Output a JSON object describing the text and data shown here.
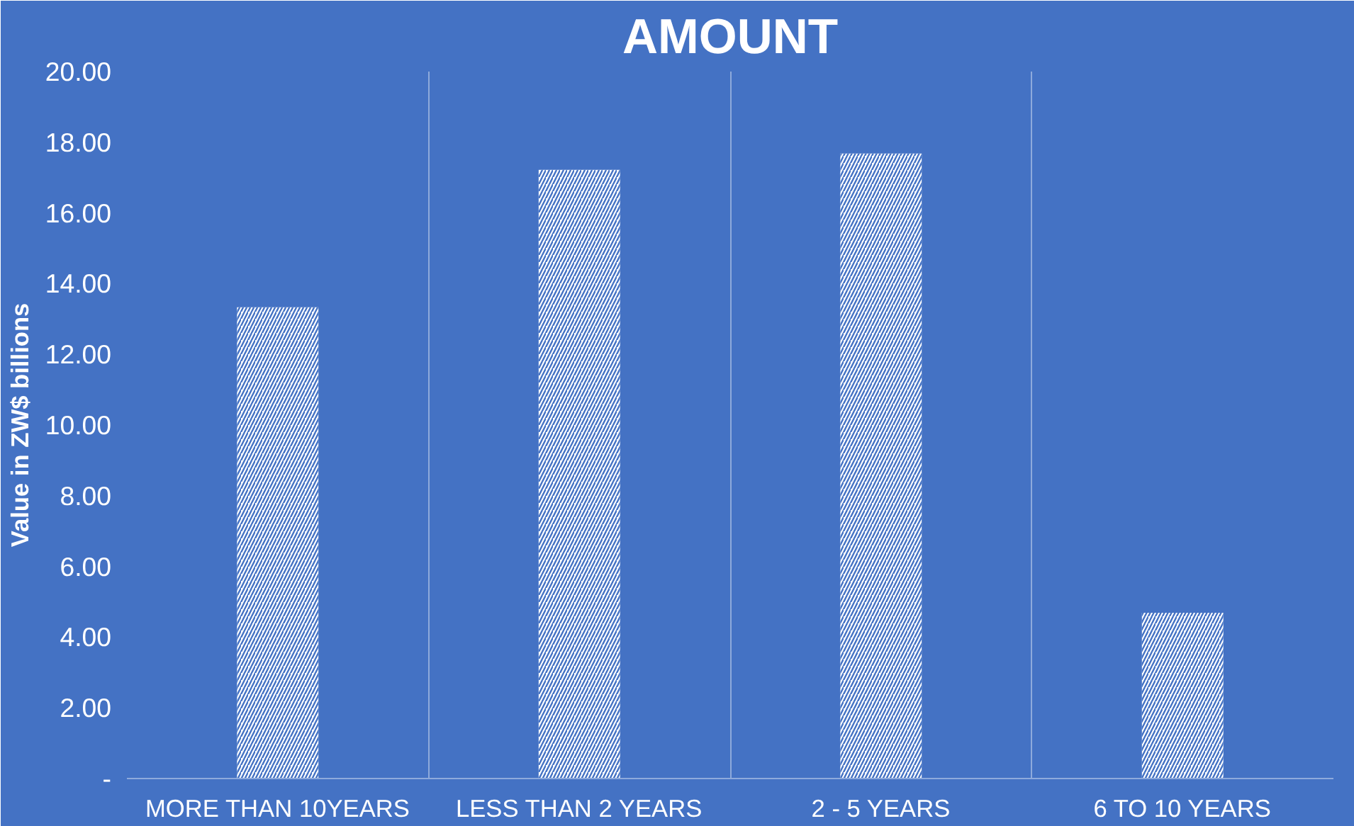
{
  "chart_data": {
    "type": "bar",
    "title": "AMOUNT",
    "ylabel": "Value in ZW$ billions",
    "categories": [
      "MORE THAN 10YEARS",
      "LESS THAN 2 YEARS",
      "2 - 5 YEARS",
      "6 TO 10 YEARS"
    ],
    "values": [
      13.33,
      17.22,
      17.68,
      4.69
    ],
    "color": "#ffffff",
    "ylim": [
      0,
      20
    ],
    "yticks": [
      {
        "value": 0,
        "label": "-"
      },
      {
        "value": 2,
        "label": "2.00"
      },
      {
        "value": 4,
        "label": "4.00"
      },
      {
        "value": 6,
        "label": "6.00"
      },
      {
        "value": 8,
        "label": "8.00"
      },
      {
        "value": 10,
        "label": "10.00"
      },
      {
        "value": 12,
        "label": "12.00"
      },
      {
        "value": 14,
        "label": "14.00"
      },
      {
        "value": 16,
        "label": "16.00"
      },
      {
        "value": 18,
        "label": "18.00"
      },
      {
        "value": 20,
        "label": "20.00"
      }
    ],
    "grid": "x"
  }
}
